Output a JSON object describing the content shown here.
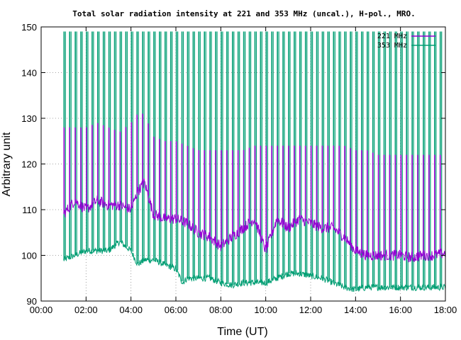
{
  "chart_data": {
    "type": "line",
    "title": "Total solar radiation intensity at 221 and 353 MHz (uncal.), H-pol., MRO.",
    "xlabel": "Time (UT)",
    "ylabel": "Arbitrary unit",
    "xlim": [
      0,
      18
    ],
    "ylim": [
      90,
      150
    ],
    "x_tick_labels": [
      "00:00",
      "02:00",
      "04:00",
      "06:00",
      "08:00",
      "10:00",
      "12:00",
      "14:00",
      "16:00",
      "18:00"
    ],
    "y_tick_labels": [
      "90",
      "100",
      "110",
      "120",
      "130",
      "140",
      "150"
    ],
    "grid": "dotted",
    "legend_position": "top-right",
    "spike_interval_hours": 0.25,
    "x_units": "hours UT",
    "series": [
      {
        "name": "221 MHz",
        "color": "#9400d3",
        "x": [
          1.0,
          1.5,
          2.0,
          2.5,
          3.0,
          3.5,
          4.0,
          4.3,
          4.6,
          5.0,
          5.5,
          6.0,
          6.5,
          7.0,
          7.5,
          8.0,
          8.5,
          9.0,
          9.5,
          10.0,
          10.5,
          11.0,
          11.5,
          12.0,
          12.5,
          13.0,
          13.5,
          14.0,
          14.5,
          15.0,
          15.5,
          16.0,
          16.5,
          17.0,
          17.5,
          18.0
        ],
        "values": [
          109,
          112,
          110,
          112,
          111,
          111,
          110,
          114,
          116,
          109,
          108,
          108,
          107,
          105,
          104,
          102,
          104,
          106,
          108,
          101,
          108,
          106,
          108,
          107,
          106,
          106,
          104,
          101,
          100,
          100,
          100,
          100,
          99.5,
          100,
          100,
          100.5
        ],
        "spike_top": [
          128,
          128,
          128,
          129,
          128,
          127,
          129,
          131,
          131,
          126,
          125,
          125,
          124,
          123,
          123,
          123,
          123,
          123,
          124,
          124,
          124,
          124,
          124,
          124,
          124,
          124,
          124,
          123,
          123,
          122,
          122,
          122,
          122,
          122,
          122,
          122
        ]
      },
      {
        "name": "353 MHz",
        "color": "#009e73",
        "x": [
          1.0,
          1.5,
          2.0,
          2.5,
          3.0,
          3.5,
          4.0,
          4.3,
          4.6,
          5.0,
          5.5,
          6.0,
          6.3,
          6.5,
          7.0,
          7.5,
          8.0,
          8.5,
          9.0,
          9.5,
          10.0,
          10.5,
          11.0,
          11.5,
          12.0,
          12.5,
          13.0,
          13.5,
          14.0,
          14.5,
          15.0,
          15.5,
          16.0,
          16.5,
          17.0,
          17.5,
          18.0
        ],
        "values": [
          99,
          100,
          101,
          101,
          101,
          103,
          101,
          98,
          99,
          99,
          98,
          97,
          94,
          95,
          95,
          95,
          94,
          93.5,
          94,
          94,
          94,
          95,
          96,
          96,
          95.5,
          95,
          94,
          93,
          92.5,
          93,
          93,
          93,
          93,
          93,
          93,
          93,
          93
        ],
        "spike_top": 149
      }
    ]
  }
}
